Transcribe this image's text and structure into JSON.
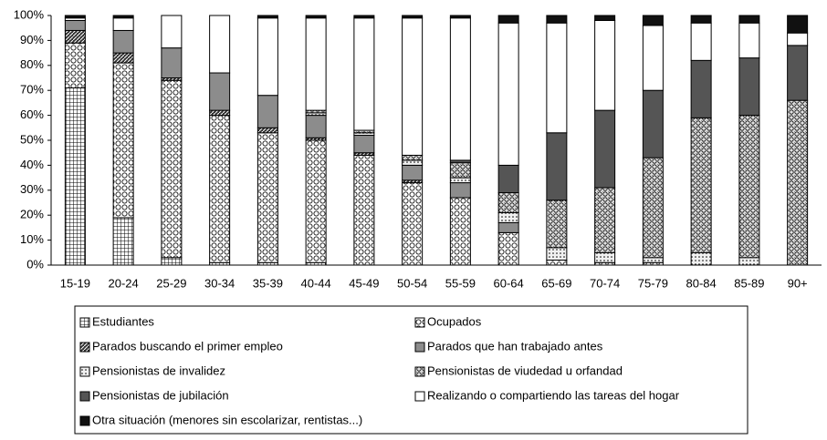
{
  "chart_data": {
    "type": "stacked_bar",
    "categories": [
      "15-19",
      "20-24",
      "25-29",
      "30-34",
      "35-39",
      "40-44",
      "45-49",
      "50-54",
      "55-59",
      "60-64",
      "65-69",
      "70-74",
      "75-79",
      "80-84",
      "85-89",
      "90+"
    ],
    "series": [
      {
        "name": "Estudiantes",
        "color": "#ffffff",
        "values": [
          71,
          19,
          3,
          1,
          1,
          1,
          0,
          0,
          0,
          0,
          0,
          0,
          0,
          0,
          0,
          0
        ]
      },
      {
        "name": "Ocupados",
        "color": "#ffffff",
        "values": [
          18,
          62,
          71,
          59,
          52,
          49,
          44,
          33,
          27,
          13,
          2,
          1,
          1,
          0,
          0,
          0
        ]
      },
      {
        "name": "Parados buscando el primer empleo",
        "color": "#333333",
        "values": [
          5,
          4,
          1,
          2,
          2,
          1,
          1,
          1,
          0,
          0,
          0,
          0,
          0,
          0,
          0,
          0
        ]
      },
      {
        "name": "Parados que han trabajado antes",
        "color": "#8c8c8c",
        "values": [
          4,
          9,
          12,
          15,
          13,
          9,
          7,
          6,
          6,
          4,
          0,
          0,
          0,
          0,
          0,
          0
        ]
      },
      {
        "name": "Pensionistas de invalidez",
        "color": "#f0f0f0",
        "values": [
          0,
          0,
          0,
          0,
          0,
          1,
          1,
          2,
          2,
          4,
          5,
          4,
          2,
          5,
          3,
          0
        ]
      },
      {
        "name": "Pensionistas de viudedad u orfandad",
        "color": "#e0e0e0",
        "values": [
          0,
          0,
          0,
          0,
          0,
          1,
          1,
          2,
          6,
          8,
          19,
          26,
          40,
          54,
          57,
          66
        ]
      },
      {
        "name": "Pensionistas de jubilación",
        "color": "#555555",
        "values": [
          0,
          0,
          0,
          0,
          0,
          0,
          0,
          0,
          1,
          11,
          27,
          31,
          27,
          23,
          23,
          22
        ]
      },
      {
        "name": "Realizando o compartiendo las tareas del hogar",
        "color": "#ffffff",
        "values": [
          1,
          5,
          13,
          23,
          31,
          37,
          45,
          55,
          57,
          57,
          44,
          36,
          26,
          15,
          14,
          5
        ]
      },
      {
        "name": "Otra situación (menores sin escolarizar, rentistas...)",
        "color": "#111111",
        "values": [
          1,
          1,
          0,
          0,
          1,
          1,
          1,
          1,
          1,
          3,
          3,
          2,
          4,
          3,
          3,
          7
        ]
      }
    ],
    "ylim": [
      0,
      100
    ],
    "yticks": [
      {
        "value": 0,
        "label": "0%"
      },
      {
        "value": 10,
        "label": "10%"
      },
      {
        "value": 20,
        "label": "20%"
      },
      {
        "value": 30,
        "label": "30%"
      },
      {
        "value": 40,
        "label": "40%"
      },
      {
        "value": 50,
        "label": "50%"
      },
      {
        "value": 60,
        "label": "60%"
      },
      {
        "value": 70,
        "label": "70%"
      },
      {
        "value": 80,
        "label": "80%"
      },
      {
        "value": 90,
        "label": "90%"
      },
      {
        "value": 100,
        "label": "100%"
      }
    ],
    "legend": "bottom"
  }
}
